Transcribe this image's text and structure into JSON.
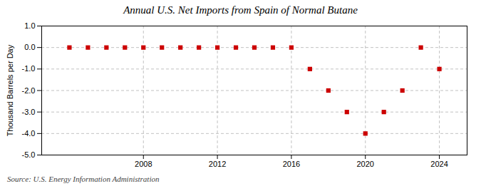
{
  "chart_data": {
    "type": "scatter",
    "title": "Annual U.S. Net Imports from Spain of Normal Butane",
    "ylabel": "Thousand Barrels per Day",
    "annotations": [
      "Source: U.S. Energy Information Administration"
    ],
    "x": [
      2004,
      2005,
      2006,
      2007,
      2008,
      2009,
      2010,
      2011,
      2012,
      2013,
      2014,
      2015,
      2016,
      2017,
      2018,
      2019,
      2020,
      2021,
      2022,
      2023,
      2024
    ],
    "values": [
      0,
      0,
      0,
      0,
      0,
      0,
      0,
      0,
      0,
      0,
      0,
      0,
      0,
      -1,
      -2,
      -3,
      -4,
      -3,
      -2,
      0,
      -1
    ],
    "color": "#cc0000",
    "marker": "square",
    "xlim": [
      2002.5,
      2025.5
    ],
    "xticks": [
      2008,
      2012,
      2016,
      2020,
      2024
    ],
    "ylim": [
      -5.0,
      1.0
    ],
    "yticks": [
      {
        "value": -5.0,
        "label": "-5.0"
      },
      {
        "value": -4.0,
        "label": "-4.0"
      },
      {
        "value": -3.0,
        "label": "-3.0"
      },
      {
        "value": -2.0,
        "label": "-2.0"
      },
      {
        "value": -1.0,
        "label": "-1.0"
      },
      {
        "value": 0.0,
        "label": "0.0"
      },
      {
        "value": 1.0,
        "label": "1.0"
      }
    ],
    "grid": true
  }
}
